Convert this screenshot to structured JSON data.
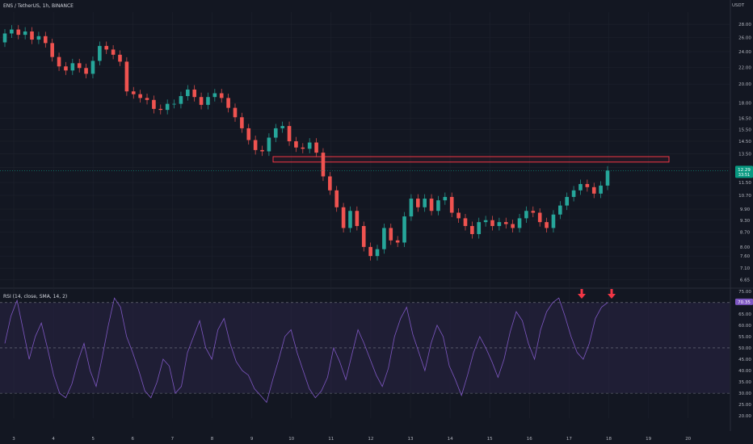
{
  "header": {
    "title": "ENS / TetherUS, 1h, BINANCE"
  },
  "price_axis": {
    "currency": "USDT"
  },
  "rsi_panel": {
    "label": "RSI (14, close, SMA, 14, 2)"
  },
  "colors": {
    "background": "#131722",
    "up_candle": "#26a69a",
    "down_candle": "#ef5350",
    "rsi_line": "#7e57c2",
    "rsi_band_fill": "#2a2545",
    "zone_stroke": "#f23645",
    "arrow": "#f23645",
    "price_badge": "#089981",
    "rsi_badge": "#7e57c2",
    "grid": "#1e222d",
    "axis_text": "#b2b5be"
  },
  "chart_data": [
    {
      "type": "candlestick",
      "title": "ENS / TetherUS, 1h, BINANCE",
      "x_ticks": [
        "3",
        "4",
        "5",
        "6",
        "7",
        "8",
        "9",
        "10",
        "11",
        "12",
        "13",
        "14",
        "15",
        "16",
        "17",
        "18",
        "19",
        "20"
      ],
      "y_ticks": [
        "28.00",
        "26.00",
        "24.00",
        "22.00",
        "20.00",
        "18.00",
        "16.50",
        "15.50",
        "14.50",
        "13.50",
        "12.50",
        "11.50",
        "10.70",
        "9.90",
        "9.30",
        "8.70",
        "8.00",
        "7.60",
        "7.10",
        "6.65"
      ],
      "y_scale": "log",
      "ylim": [
        6.4,
        30
      ],
      "current_price": "12.29",
      "countdown": "33:51",
      "series": [
        {
          "values": [
            [
              25.3,
              26.6
            ],
            [
              26.6,
              27.2
            ],
            [
              27.2,
              26.4
            ],
            [
              26.4,
              26.9
            ],
            [
              26.9,
              25.7
            ],
            [
              25.7,
              26.2
            ],
            [
              26.2,
              25.2
            ],
            [
              25.2,
              23.3
            ],
            [
              23.3,
              22.1
            ],
            [
              22.1,
              21.6
            ],
            [
              21.6,
              22.5
            ],
            [
              22.5,
              21.9
            ],
            [
              21.9,
              21.2
            ],
            [
              21.2,
              22.8
            ],
            [
              22.8,
              24.8
            ],
            [
              24.8,
              24.3
            ],
            [
              24.3,
              23.6
            ],
            [
              23.6,
              22.7
            ],
            [
              22.7,
              19.2
            ],
            [
              19.2,
              18.9
            ],
            [
              18.9,
              18.5
            ],
            [
              18.5,
              18.3
            ],
            [
              18.3,
              17.4
            ],
            [
              17.4,
              17.3
            ],
            [
              17.3,
              17.9
            ],
            [
              17.9,
              17.9
            ],
            [
              17.9,
              18.7
            ],
            [
              18.7,
              19.4
            ],
            [
              19.4,
              18.6
            ],
            [
              18.6,
              17.8
            ],
            [
              17.8,
              18.6
            ],
            [
              18.6,
              19.0
            ],
            [
              19.0,
              18.5
            ],
            [
              18.5,
              17.5
            ],
            [
              17.5,
              16.6
            ],
            [
              16.6,
              15.6
            ],
            [
              15.6,
              14.6
            ],
            [
              14.6,
              13.8
            ],
            [
              13.8,
              13.7
            ],
            [
              13.7,
              14.8
            ],
            [
              14.8,
              15.6
            ],
            [
              15.6,
              15.8
            ],
            [
              15.8,
              14.5
            ],
            [
              14.5,
              14.0
            ],
            [
              14.0,
              13.9
            ],
            [
              13.9,
              14.4
            ],
            [
              14.4,
              13.6
            ],
            [
              13.6,
              11.9
            ],
            [
              11.9,
              11.0
            ],
            [
              11.0,
              10.0
            ],
            [
              10.0,
              8.9
            ],
            [
              8.9,
              9.8
            ],
            [
              9.8,
              9.0
            ],
            [
              9.0,
              8.0
            ],
            [
              8.0,
              7.6
            ],
            [
              7.6,
              7.9
            ],
            [
              7.9,
              8.9
            ],
            [
              8.9,
              8.3
            ],
            [
              8.3,
              8.2
            ],
            [
              8.2,
              9.5
            ],
            [
              9.5,
              10.5
            ],
            [
              10.5,
              10.0
            ],
            [
              10.0,
              10.5
            ],
            [
              10.5,
              9.8
            ],
            [
              9.8,
              10.4
            ],
            [
              10.4,
              10.6
            ],
            [
              10.6,
              9.7
            ],
            [
              9.7,
              9.4
            ],
            [
              9.4,
              9.0
            ],
            [
              9.0,
              8.6
            ],
            [
              8.6,
              9.2
            ],
            [
              9.2,
              9.3
            ],
            [
              9.3,
              9.0
            ],
            [
              9.0,
              9.2
            ],
            [
              9.2,
              9.1
            ],
            [
              9.1,
              8.9
            ],
            [
              8.9,
              9.4
            ],
            [
              9.4,
              9.8
            ],
            [
              9.8,
              9.7
            ],
            [
              9.7,
              9.2
            ],
            [
              9.2,
              8.9
            ],
            [
              8.9,
              9.6
            ],
            [
              9.6,
              10.1
            ],
            [
              10.1,
              10.6
            ],
            [
              10.6,
              11.0
            ],
            [
              11.0,
              11.4
            ],
            [
              11.4,
              11.2
            ],
            [
              11.2,
              10.8
            ],
            [
              10.8,
              11.3
            ],
            [
              11.3,
              12.3
            ]
          ]
        }
      ],
      "annotations": [
        {
          "type": "zone",
          "price_top": 13.3,
          "price_bottom": 12.9
        }
      ]
    },
    {
      "type": "line",
      "title": "RSI (14, close, SMA, 14, 2)",
      "y_ticks": [
        "75.00",
        "70.00",
        "65.00",
        "60.00",
        "55.00",
        "50.00",
        "45.00",
        "40.00",
        "35.00",
        "30.00",
        "25.00",
        "20.00"
      ],
      "ylim": [
        19,
        76
      ],
      "bands": [
        70,
        50,
        30
      ],
      "current_value": "70.35",
      "series": [
        {
          "values": [
            52,
            64,
            71,
            58,
            45,
            55,
            61,
            50,
            38,
            30,
            28,
            34,
            44,
            52,
            40,
            33,
            46,
            60,
            72,
            68,
            55,
            48,
            40,
            31,
            28,
            35,
            45,
            42,
            30,
            33,
            48,
            55,
            62,
            50,
            45,
            58,
            63,
            52,
            44,
            40,
            38,
            32,
            29,
            26,
            36,
            45,
            55,
            58,
            48,
            40,
            32,
            28,
            31,
            37,
            50,
            44,
            36,
            47,
            58,
            52,
            45,
            38,
            33,
            41,
            55,
            63,
            68,
            56,
            48,
            40,
            52,
            60,
            55,
            42,
            36,
            29,
            38,
            48,
            55,
            50,
            44,
            37,
            45,
            57,
            66,
            62,
            52,
            45,
            58,
            66,
            70,
            72,
            64,
            55,
            48,
            45,
            52,
            63,
            68,
            70
          ]
        }
      ],
      "annotations": [
        {
          "type": "arrow-down",
          "note": "peak 1"
        },
        {
          "type": "arrow-down",
          "note": "peak 2"
        }
      ]
    }
  ]
}
